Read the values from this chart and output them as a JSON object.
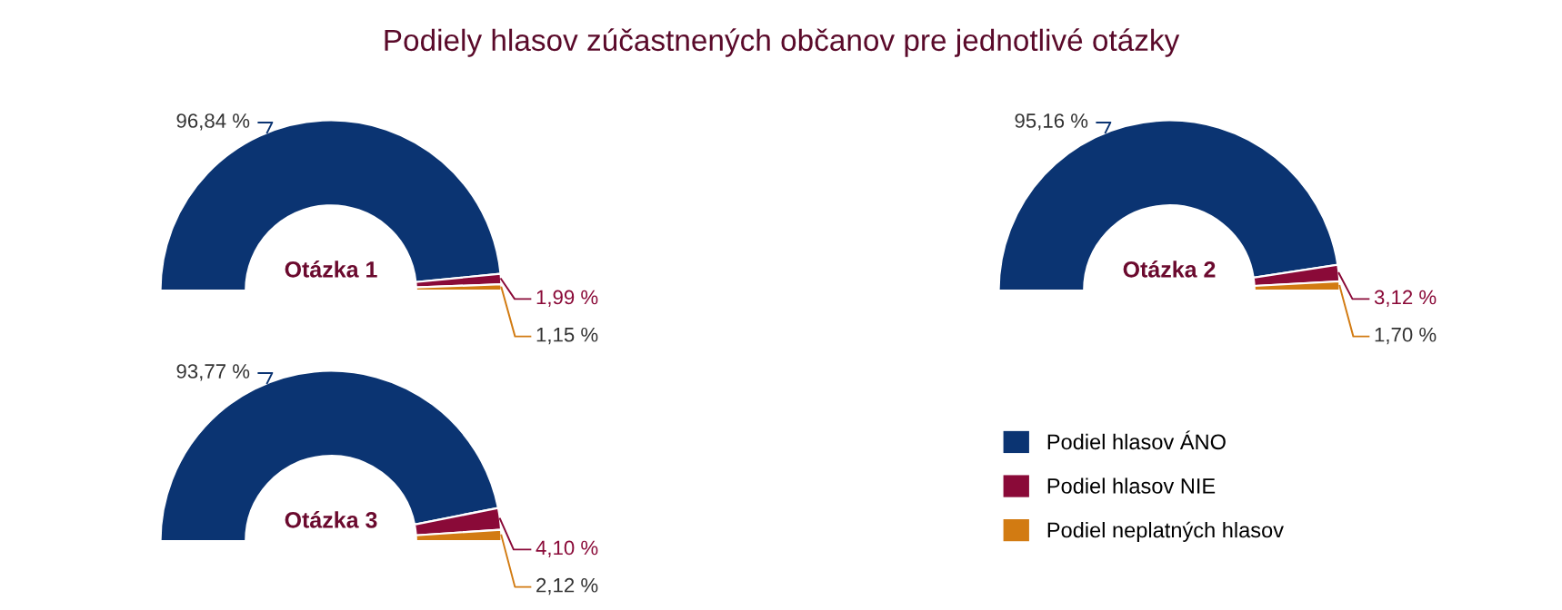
{
  "chart_data": [
    {
      "type": "donut",
      "title": "Podiely hlasov zúčastnených občanov pre jednotlivé otázky",
      "annotations": [
        "Otázka 1"
      ],
      "categories": [
        "Podiel hlasov ÁNO",
        "Podiel hlasov NIE",
        "Podiel neplatných hlasov"
      ],
      "values": [
        96.84,
        1.99,
        1.15
      ],
      "colors": [
        "#0b3472",
        "#8a0a38",
        "#d27b12"
      ],
      "value_labels": [
        "96,84 %",
        "1,99 %",
        "1,15 %"
      ],
      "legend": "bottom right"
    },
    {
      "type": "donut",
      "annotations": [
        "Otázka 2"
      ],
      "categories": [
        null,
        null,
        null
      ],
      "values": [
        95.16,
        3.12,
        1.7
      ],
      "colors": [
        "#0b3472",
        "#8a0a38",
        "#d27b12"
      ],
      "value_labels": [
        "95,16 %",
        "3,12 %",
        "1,70 %"
      ]
    },
    {
      "type": "donut",
      "annotations": [
        "Otázka 3"
      ],
      "categories": [
        null,
        null,
        null
      ],
      "values": [
        93.77,
        4.1,
        2.12
      ],
      "colors": [
        "#0b3472",
        "#8a0a38",
        "#d27b12"
      ],
      "value_labels": [
        "93,77 %",
        "4,10 %",
        "2,12 %"
      ]
    }
  ]
}
